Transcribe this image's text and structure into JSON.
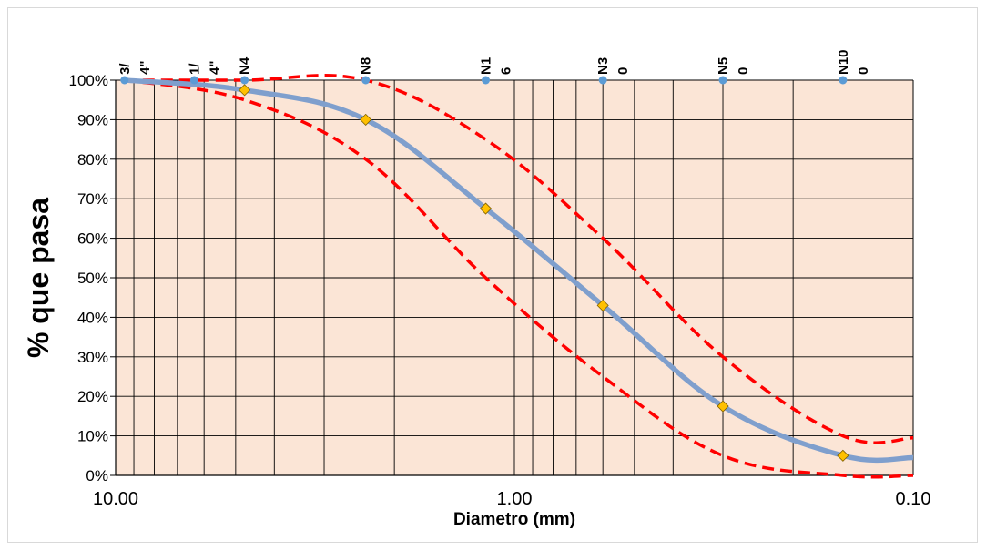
{
  "chart_data": {
    "type": "line",
    "xlabel": "Diametro (mm)",
    "ylabel": "% que pasa",
    "x_scale": "log",
    "x_reversed": true,
    "xlim": [
      10,
      0.1
    ],
    "ylim": [
      0,
      100
    ],
    "x_ticks": [
      {
        "value": 10,
        "label": "10.00"
      },
      {
        "value": 1,
        "label": "1.00"
      },
      {
        "value": 0.1,
        "label": "0.10"
      }
    ],
    "y_ticks": [
      {
        "value": 0,
        "label": "0%"
      },
      {
        "value": 10,
        "label": "10%"
      },
      {
        "value": 20,
        "label": "20%"
      },
      {
        "value": 30,
        "label": "30%"
      },
      {
        "value": 40,
        "label": "40%"
      },
      {
        "value": 50,
        "label": "50%"
      },
      {
        "value": 60,
        "label": "60%"
      },
      {
        "value": 70,
        "label": "70%"
      },
      {
        "value": 80,
        "label": "80%"
      },
      {
        "value": 90,
        "label": "90%"
      },
      {
        "value": 100,
        "label": "100%"
      }
    ],
    "grid": true,
    "background_color": "#fbe5d6",
    "sieves": [
      {
        "x": 9.5,
        "lines": [
          "3/",
          "4\""
        ]
      },
      {
        "x": 6.35,
        "lines": [
          "1/",
          "4\""
        ]
      },
      {
        "x": 4.75,
        "lines": [
          "N4"
        ]
      },
      {
        "x": 2.36,
        "lines": [
          "N8"
        ]
      },
      {
        "x": 1.18,
        "lines": [
          "N1",
          "6"
        ]
      },
      {
        "x": 0.6,
        "lines": [
          "N3",
          "0"
        ]
      },
      {
        "x": 0.3,
        "lines": [
          "N5",
          "0"
        ]
      },
      {
        "x": 0.15,
        "lines": [
          "N10",
          "0"
        ]
      }
    ],
    "sieve_marker_color": "#5b9bd5",
    "series": [
      {
        "role": "gradation",
        "color": "#7f9fcd",
        "points": [
          {
            "x": 9.5,
            "y": 100
          },
          {
            "x": 4.75,
            "y": 97.5
          },
          {
            "x": 2.36,
            "y": 90
          },
          {
            "x": 1.18,
            "y": 67.5
          },
          {
            "x": 0.6,
            "y": 43
          },
          {
            "x": 0.3,
            "y": 17.5
          },
          {
            "x": 0.15,
            "y": 5
          },
          {
            "x": 0.1,
            "y": 4.5
          }
        ],
        "marker_color": "#ffc000"
      },
      {
        "role": "upper-limit",
        "color": "#ff0000",
        "dashed": true,
        "points": [
          {
            "x": 9.5,
            "y": 100
          },
          {
            "x": 4.75,
            "y": 100
          },
          {
            "x": 2.36,
            "y": 100
          },
          {
            "x": 1.18,
            "y": 85
          },
          {
            "x": 0.6,
            "y": 60
          },
          {
            "x": 0.3,
            "y": 30
          },
          {
            "x": 0.15,
            "y": 10
          },
          {
            "x": 0.1,
            "y": 9.5
          }
        ]
      },
      {
        "role": "lower-limit",
        "color": "#ff0000",
        "dashed": true,
        "points": [
          {
            "x": 9.5,
            "y": 100
          },
          {
            "x": 4.75,
            "y": 95
          },
          {
            "x": 2.36,
            "y": 80
          },
          {
            "x": 1.18,
            "y": 50
          },
          {
            "x": 0.6,
            "y": 25
          },
          {
            "x": 0.3,
            "y": 5
          },
          {
            "x": 0.15,
            "y": 0
          },
          {
            "x": 0.1,
            "y": 0
          }
        ]
      }
    ]
  }
}
